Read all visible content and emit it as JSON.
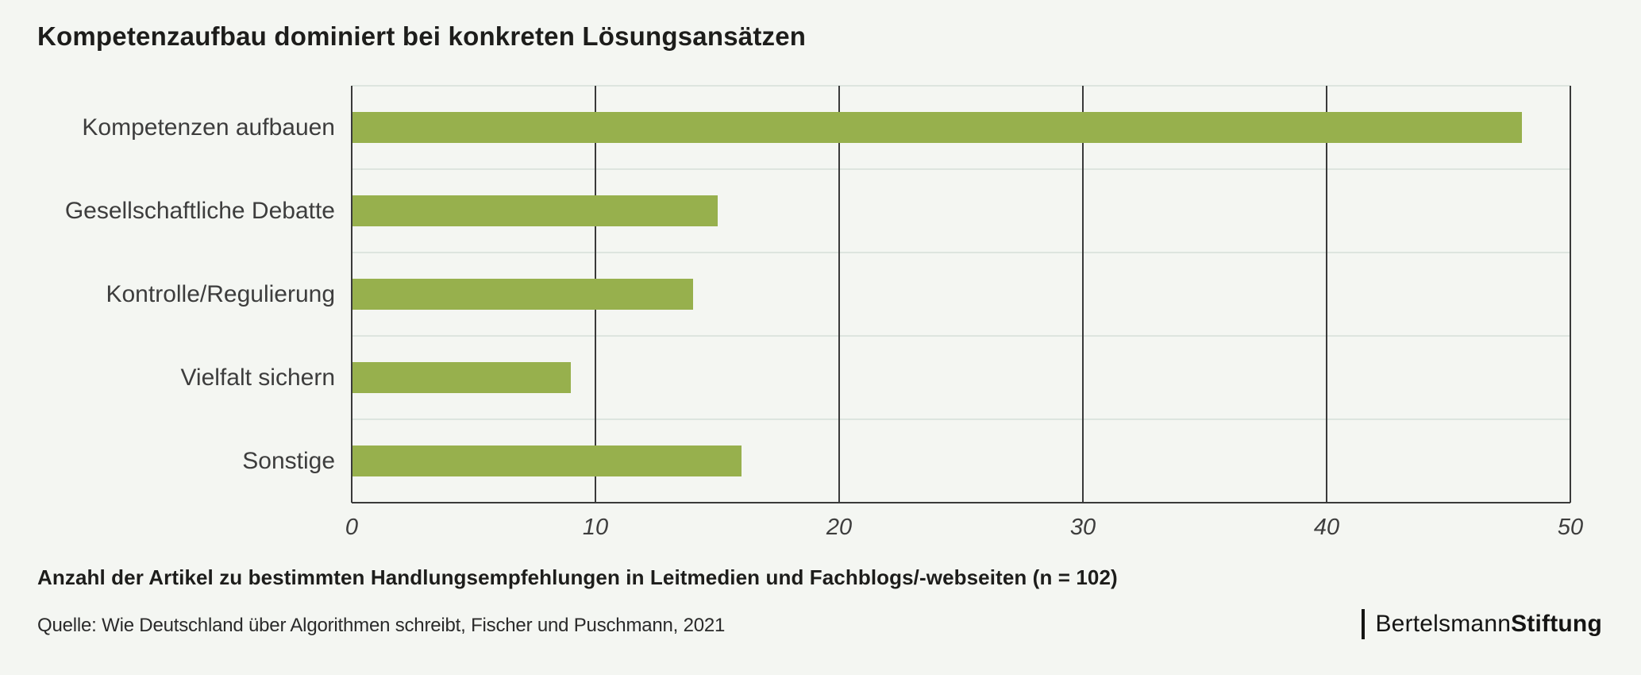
{
  "title": "Kompetenzaufbau dominiert bei konkreten Lösungsansätzen",
  "chart_data": {
    "type": "bar",
    "orientation": "horizontal",
    "title": "Kompetenzaufbau dominiert bei konkreten Lösungsansätzen",
    "categories": [
      "Kompetenzen aufbauen",
      "Gesellschaftliche Debatte",
      "Kontrolle/Regulierung",
      "Vielfalt sichern",
      "Sonstige"
    ],
    "values": [
      48,
      15,
      14,
      9,
      16
    ],
    "xlabel": "",
    "ylabel": "",
    "xlim": [
      0,
      50
    ],
    "x_ticks": [
      "0",
      "10",
      "20",
      "30",
      "40",
      "50"
    ],
    "x_tick_values": [
      0,
      10,
      20,
      30,
      40,
      50
    ],
    "grid": "vertical dark lines at each x tick, light horizontal band separators",
    "legend": "none",
    "bar_color": "#97b04d"
  },
  "footnote": "Anzahl der Artikel zu bestimmten Handlungsempfehlungen in Leitmedien und Fachblogs/-webseiten (n = 102)",
  "source": "Quelle: Wie Deutschland über Algorithmen schreibt, Fischer und Puschmann, 2021",
  "logo": {
    "text_regular": "Bertelsmann",
    "text_bold": "Stiftung"
  },
  "colors": {
    "background": "#f4f6f2",
    "bar": "#97b04d",
    "grid_dark": "#3a3a3a",
    "grid_light": "#dde5df",
    "axis": "#3a3a3a",
    "title_text": "#1d1d1b",
    "label_text": "#3d3d3d",
    "footnote_text": "#1d1d1b",
    "source_text": "#2a2a2a",
    "logo_text": "#151514"
  }
}
